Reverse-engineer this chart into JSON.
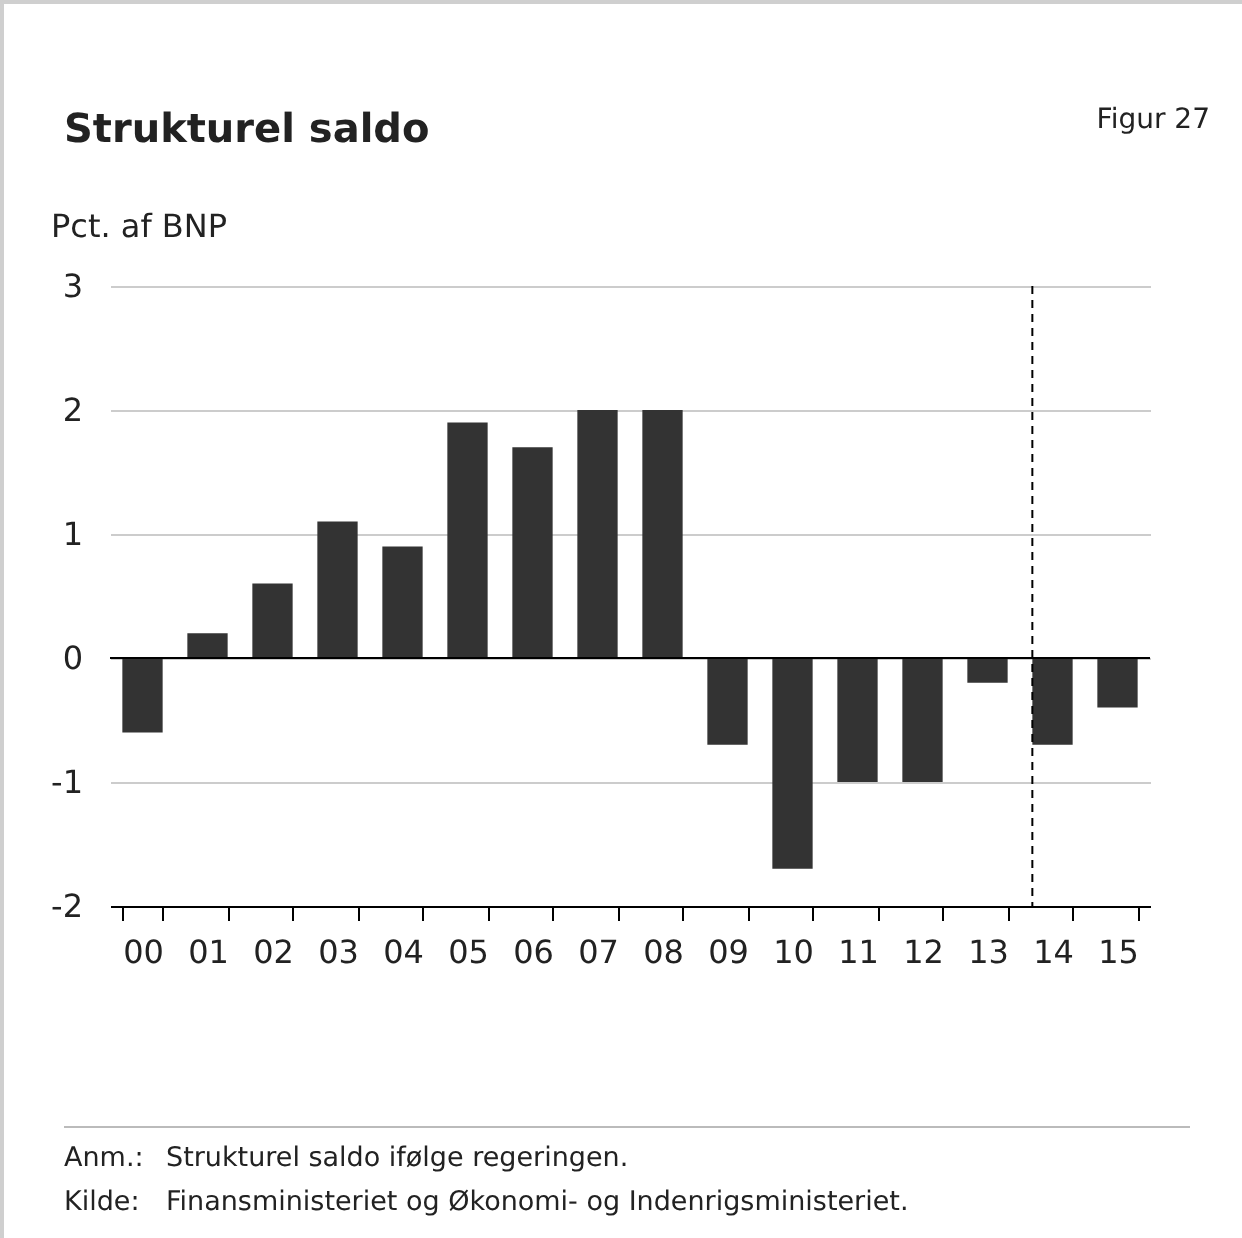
{
  "chart_data": {
    "type": "bar",
    "title": "Strukturel saldo",
    "ylabel": "Pct. af BNP",
    "annotations": [
      "Figur 27",
      "Anm.:\tStrukturel saldo ifølge regeringen.",
      "Kilde:\tFinansministeriet og Økonomi- og Indenrigsministeriet."
    ],
    "categories": [
      "00",
      "01",
      "02",
      "03",
      "04",
      "05",
      "06",
      "07",
      "08",
      "09",
      "10",
      "11",
      "12",
      "13",
      "14",
      "15"
    ],
    "values": [
      -0.6,
      0.2,
      0.6,
      1.1,
      0.9,
      1.9,
      1.7,
      2.0,
      2.0,
      -0.7,
      -1.7,
      -1.0,
      -1.0,
      -0.2,
      -0.7,
      -0.4
    ],
    "color": "#333333",
    "ylim": [
      -2,
      3
    ],
    "yticks": [
      {
        "value": -2,
        "label": "-2"
      },
      {
        "value": -1,
        "label": "-1"
      },
      0,
      1,
      2,
      3
    ],
    "grid": "y",
    "ref_lines": [
      {
        "axis": "x",
        "value": "14",
        "line_style": "dashed",
        "color": "#000000"
      },
      {
        "axis": "y",
        "value": 0,
        "line_style": "solid",
        "color": "#000000"
      }
    ]
  }
}
